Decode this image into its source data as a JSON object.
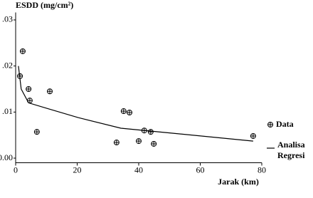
{
  "chart_data": {
    "type": "scatter",
    "y_label": "ESDD (mg/cm²)",
    "x_label": "Jarak (km)",
    "xlim": [
      0,
      80
    ],
    "xticks": [
      0,
      20,
      40,
      60,
      80
    ],
    "ylim": [
      -0.001,
      0.031
    ],
    "yticks": [
      {
        "value": 0,
        "label": "0.00"
      },
      {
        "value": 0.01,
        "label": ".01"
      },
      {
        "value": 0.02,
        "label": ".02"
      },
      {
        "value": 0.03,
        "label": ".03"
      }
    ],
    "series": [
      {
        "name": "Data",
        "kind": "scatter",
        "color": "#000000",
        "x": [
          1.4,
          2.3,
          4.2,
          4.6,
          6.9,
          11.1,
          32.8,
          35.1,
          37.0,
          40.0,
          41.8,
          43.9,
          44.9,
          77.2
        ],
        "values": [
          0.0178,
          0.0232,
          0.015,
          0.0125,
          0.0057,
          0.0145,
          0.0034,
          0.0102,
          0.0099,
          0.0037,
          0.006,
          0.0057,
          0.0031,
          0.0048
        ]
      },
      {
        "name": "Analisa Regresi",
        "kind": "line",
        "color": "#000000",
        "x": [
          0.9,
          1.8,
          4.2,
          10.2,
          20.3,
          34.2,
          52.7,
          77.2
        ],
        "values": [
          0.02,
          0.015,
          0.012,
          0.0108,
          0.0088,
          0.0065,
          0.0053,
          0.0037
        ]
      }
    ]
  }
}
